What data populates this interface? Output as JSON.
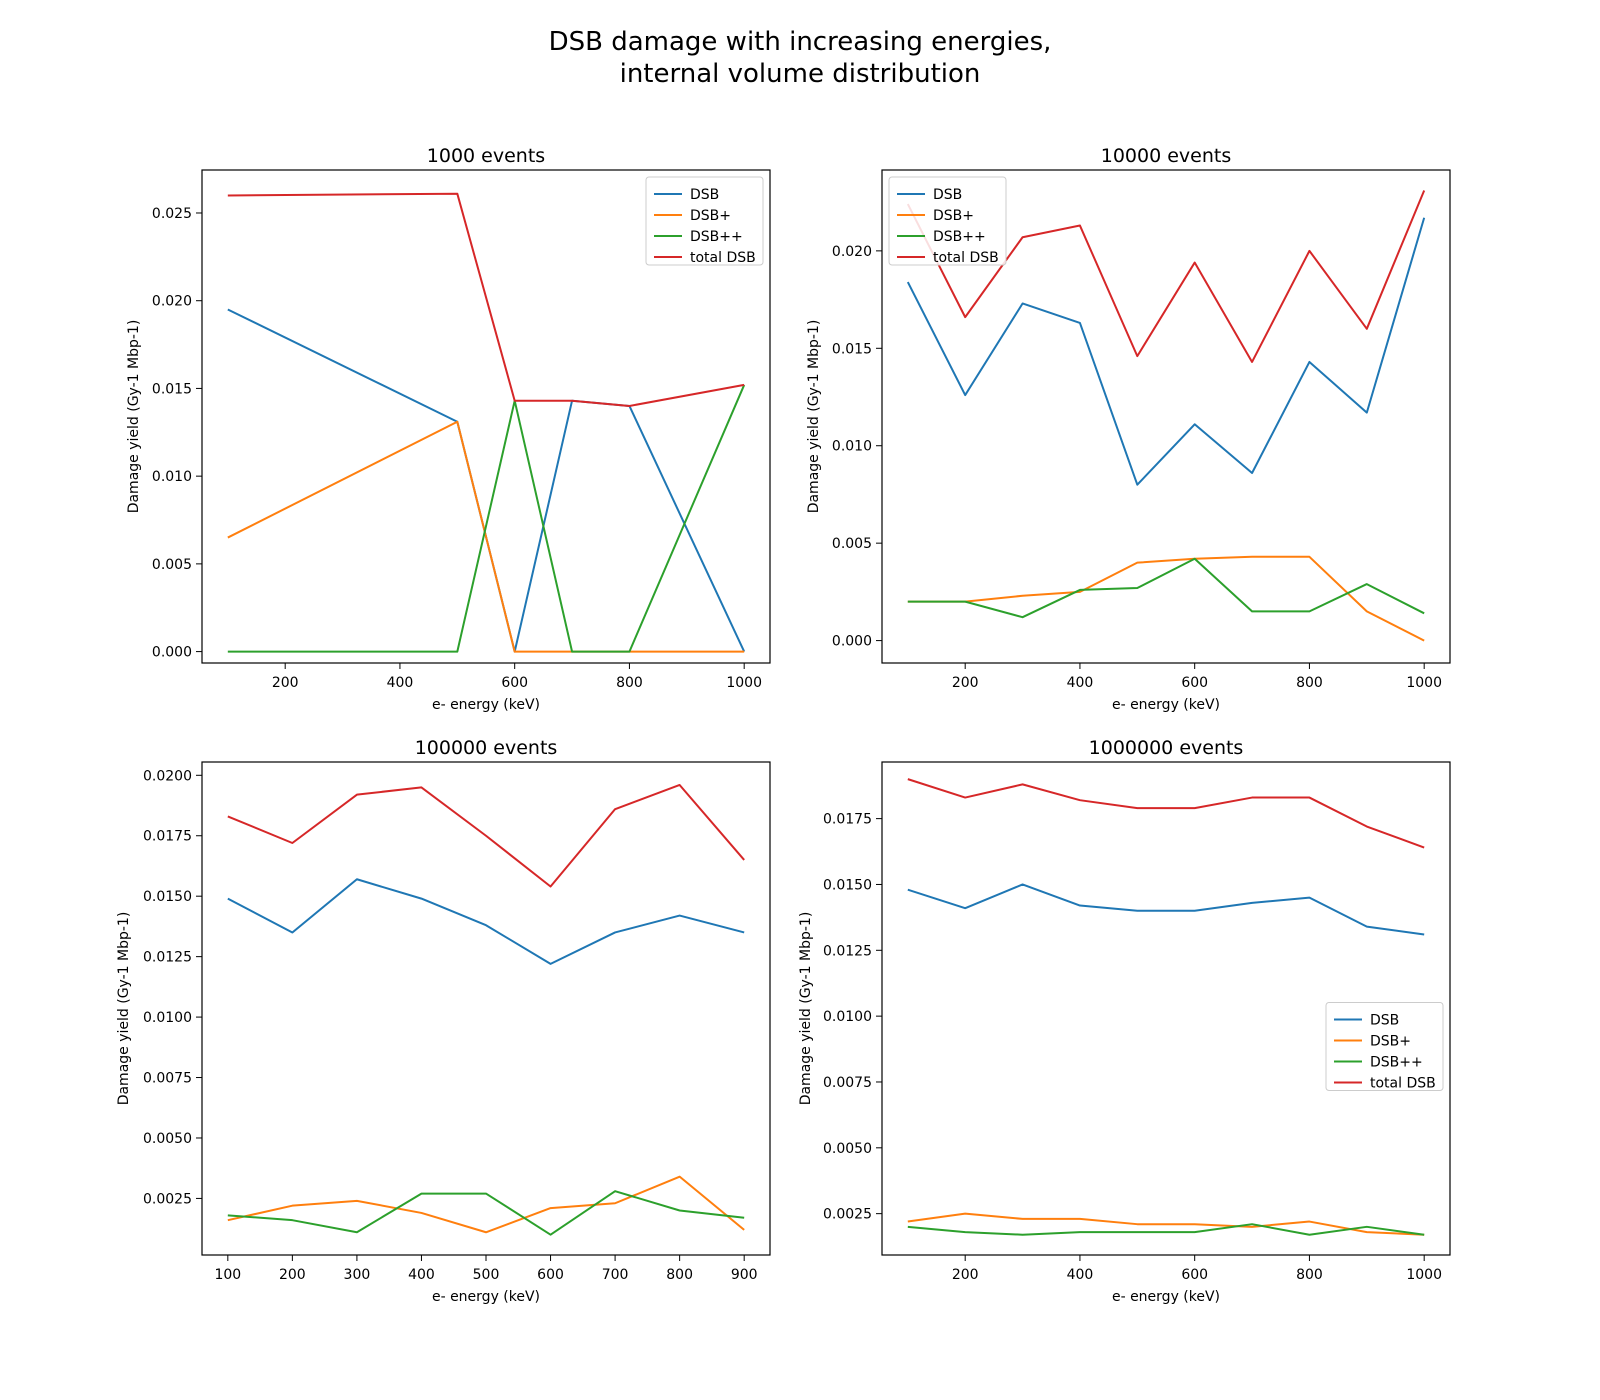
{
  "figure": {
    "title_line1": "DSB damage with increasing energies,",
    "title_line2": "internal volume distribution"
  },
  "colors": {
    "DSB": "#1f77b4",
    "DSB+": "#ff7f0e",
    "DSB++": "#2ca02c",
    "total DSB": "#d62728"
  },
  "chart_data": [
    {
      "type": "line",
      "title": "1000 events",
      "xlabel": "e- energy (keV)",
      "ylabel": "Damage yield (Gy-1 Mbp-1)",
      "xlim": [
        55,
        1045
      ],
      "ylim": [
        -0.00065,
        0.02745
      ],
      "xticks": [
        200,
        400,
        600,
        800,
        1000
      ],
      "yticks": [
        0.0,
        0.005,
        0.01,
        0.015,
        0.02,
        0.025
      ],
      "ytick_labels": [
        "0.000",
        "0.005",
        "0.010",
        "0.015",
        "0.020",
        "0.025"
      ],
      "legend": "top-right",
      "legend_entries": [
        "DSB",
        "DSB+",
        "DSB++",
        "total DSB"
      ],
      "series": [
        {
          "name": "DSB",
          "x": [
            100,
            500,
            600,
            700,
            800,
            1000
          ],
          "values": [
            0.0195,
            0.0131,
            0.0,
            0.0143,
            0.014,
            0.0
          ]
        },
        {
          "name": "DSB+",
          "x": [
            100,
            500,
            600,
            700,
            800,
            1000
          ],
          "values": [
            0.0065,
            0.0131,
            0.0,
            0.0,
            0.0,
            0.0
          ]
        },
        {
          "name": "DSB++",
          "x": [
            100,
            500,
            600,
            700,
            800,
            1000
          ],
          "values": [
            0.0,
            0.0,
            0.0143,
            0.0,
            0.0,
            0.0152
          ]
        },
        {
          "name": "total DSB",
          "x": [
            100,
            500,
            600,
            700,
            800,
            1000
          ],
          "values": [
            0.026,
            0.0261,
            0.0143,
            0.0143,
            0.014,
            0.0152
          ]
        }
      ]
    },
    {
      "type": "line",
      "title": "10000 events",
      "xlabel": "e- energy (keV)",
      "ylabel": "Damage yield (Gy-1 Mbp-1)",
      "xlim": [
        55,
        1045
      ],
      "ylim": [
        -0.00115,
        0.02415
      ],
      "xticks": [
        200,
        400,
        600,
        800,
        1000
      ],
      "yticks": [
        0.0,
        0.005,
        0.01,
        0.015,
        0.02
      ],
      "ytick_labels": [
        "0.000",
        "0.005",
        "0.010",
        "0.015",
        "0.020"
      ],
      "legend": "top-left",
      "legend_entries": [
        "DSB",
        "DSB+",
        "DSB++",
        "total DSB"
      ],
      "series": [
        {
          "name": "DSB",
          "x": [
            100,
            200,
            300,
            400,
            500,
            600,
            700,
            800,
            900,
            1000
          ],
          "values": [
            0.0184,
            0.0126,
            0.0173,
            0.0163,
            0.008,
            0.0111,
            0.0086,
            0.0143,
            0.0117,
            0.0217
          ]
        },
        {
          "name": "DSB+",
          "x": [
            100,
            200,
            300,
            400,
            500,
            600,
            700,
            800,
            900,
            1000
          ],
          "values": [
            0.002,
            0.002,
            0.0023,
            0.0025,
            0.004,
            0.0042,
            0.0043,
            0.0043,
            0.0015,
            0.0
          ]
        },
        {
          "name": "DSB++",
          "x": [
            100,
            200,
            300,
            400,
            500,
            600,
            700,
            800,
            900,
            1000
          ],
          "values": [
            0.002,
            0.002,
            0.0012,
            0.0026,
            0.0027,
            0.0042,
            0.0015,
            0.0015,
            0.0029,
            0.0014
          ]
        },
        {
          "name": "total DSB",
          "x": [
            100,
            200,
            300,
            400,
            500,
            600,
            700,
            800,
            900,
            1000
          ],
          "values": [
            0.0224,
            0.0166,
            0.0207,
            0.0213,
            0.0146,
            0.0194,
            0.0143,
            0.02,
            0.016,
            0.0231
          ]
        }
      ]
    },
    {
      "type": "line",
      "title": "100000 events",
      "xlabel": "e- energy (keV)",
      "ylabel": "Damage yield (Gy-1 Mbp-1)",
      "xlim": [
        60,
        940
      ],
      "ylim": [
        0.00016,
        0.02055
      ],
      "xticks": [
        100,
        200,
        300,
        400,
        500,
        600,
        700,
        800,
        900
      ],
      "yticks": [
        0.0025,
        0.005,
        0.0075,
        0.01,
        0.0125,
        0.015,
        0.0175,
        0.02
      ],
      "ytick_labels": [
        "0.0025",
        "0.0050",
        "0.0075",
        "0.0100",
        "0.0125",
        "0.0150",
        "0.0175",
        "0.0200"
      ],
      "legend": "none",
      "series": [
        {
          "name": "DSB",
          "x": [
            100,
            200,
            300,
            400,
            500,
            600,
            700,
            800,
            900
          ],
          "values": [
            0.0149,
            0.0135,
            0.0157,
            0.0149,
            0.0138,
            0.0122,
            0.0135,
            0.0142,
            0.0135
          ]
        },
        {
          "name": "DSB+",
          "x": [
            100,
            200,
            300,
            400,
            500,
            600,
            700,
            800,
            900
          ],
          "values": [
            0.0016,
            0.0022,
            0.0024,
            0.0019,
            0.0011,
            0.0021,
            0.0023,
            0.0034,
            0.0012
          ]
        },
        {
          "name": "DSB++",
          "x": [
            100,
            200,
            300,
            400,
            500,
            600,
            700,
            800,
            900
          ],
          "values": [
            0.0018,
            0.0016,
            0.0011,
            0.0027,
            0.0027,
            0.001,
            0.0028,
            0.002,
            0.0017
          ]
        },
        {
          "name": "total DSB",
          "x": [
            100,
            200,
            300,
            400,
            500,
            600,
            700,
            800,
            900
          ],
          "values": [
            0.0183,
            0.0172,
            0.0192,
            0.0195,
            0.0175,
            0.0154,
            0.0186,
            0.0196,
            0.0165
          ]
        }
      ]
    },
    {
      "type": "line",
      "title": "1000000 events",
      "xlabel": "e- energy (keV)",
      "ylabel": "Damage yield (Gy-1 Mbp-1)",
      "xlim": [
        55,
        1045
      ],
      "ylim": [
        0.00093,
        0.01965
      ],
      "xticks": [
        200,
        400,
        600,
        800,
        1000
      ],
      "yticks": [
        0.0025,
        0.005,
        0.0075,
        0.01,
        0.0125,
        0.015,
        0.0175
      ],
      "ytick_labels": [
        "0.0025",
        "0.0050",
        "0.0075",
        "0.0100",
        "0.0125",
        "0.0150",
        "0.0175"
      ],
      "legend": "center-right",
      "legend_entries": [
        "DSB",
        "DSB+",
        "DSB++",
        "total DSB"
      ],
      "series": [
        {
          "name": "DSB",
          "x": [
            100,
            200,
            300,
            400,
            500,
            600,
            700,
            800,
            900,
            1000
          ],
          "values": [
            0.0148,
            0.0141,
            0.015,
            0.0142,
            0.014,
            0.014,
            0.0143,
            0.0145,
            0.0134,
            0.0131
          ]
        },
        {
          "name": "DSB+",
          "x": [
            100,
            200,
            300,
            400,
            500,
            600,
            700,
            800,
            900,
            1000
          ],
          "values": [
            0.0022,
            0.0025,
            0.0023,
            0.0023,
            0.0021,
            0.0021,
            0.002,
            0.0022,
            0.0018,
            0.0017
          ]
        },
        {
          "name": "DSB++",
          "x": [
            100,
            200,
            300,
            400,
            500,
            600,
            700,
            800,
            900,
            1000
          ],
          "values": [
            0.002,
            0.0018,
            0.0017,
            0.0018,
            0.0018,
            0.0018,
            0.0021,
            0.0017,
            0.002,
            0.0017
          ]
        },
        {
          "name": "total DSB",
          "x": [
            100,
            200,
            300,
            400,
            500,
            600,
            700,
            800,
            900,
            1000
          ],
          "values": [
            0.019,
            0.0183,
            0.0188,
            0.0182,
            0.0179,
            0.0179,
            0.0183,
            0.0183,
            0.0172,
            0.0164
          ]
        }
      ]
    }
  ]
}
